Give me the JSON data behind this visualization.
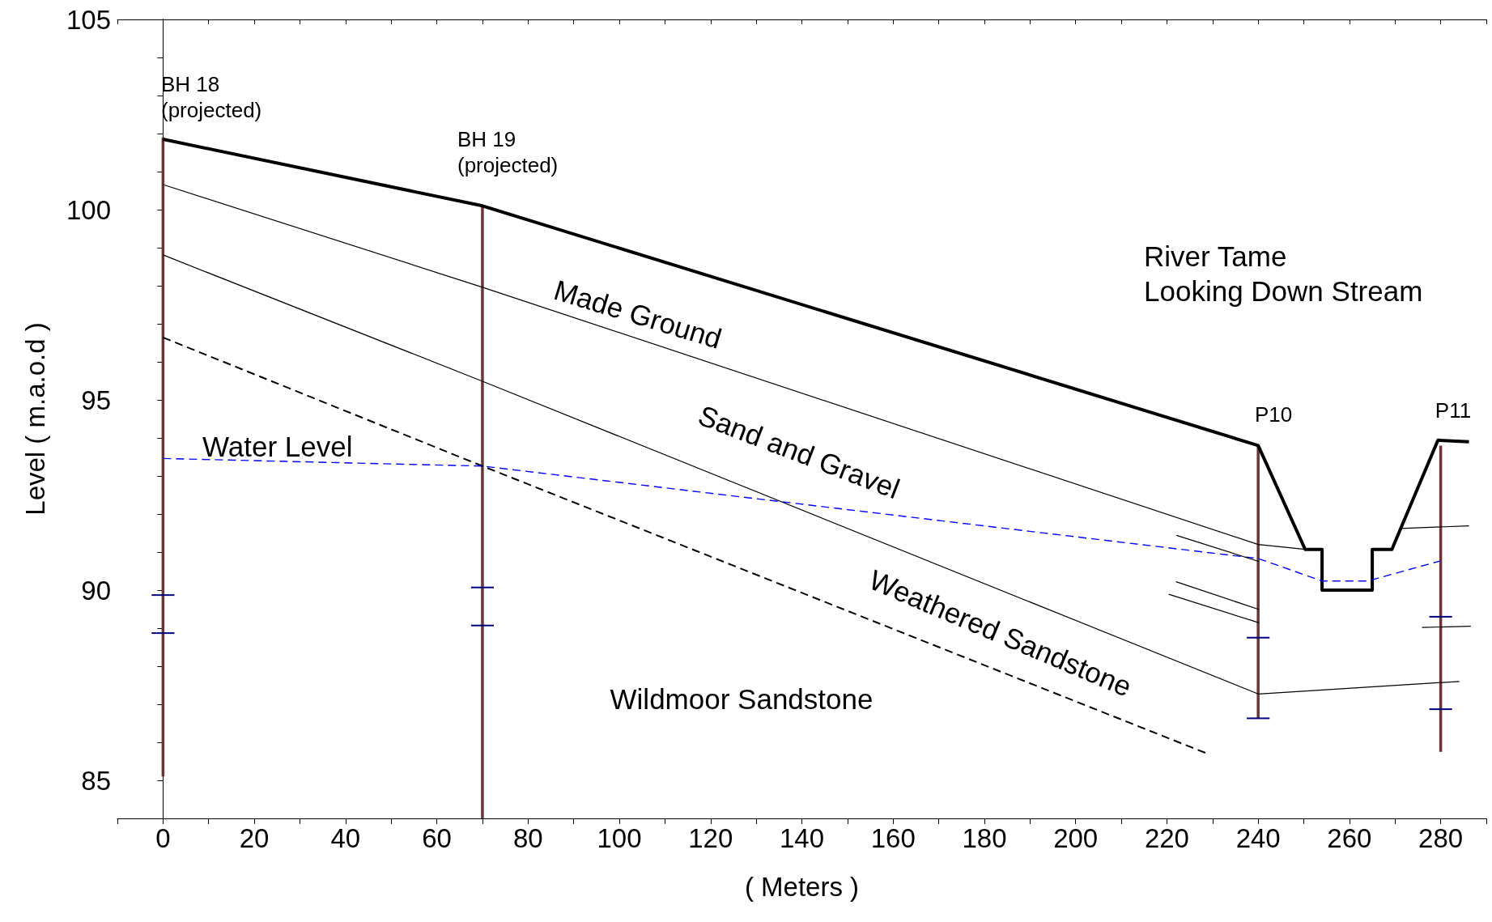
{
  "chart_data": {
    "type": "line",
    "xlabel": "( Meters )",
    "ylabel": "Level ( m.a.o.d )",
    "xlim": [
      -10,
      290
    ],
    "xticks": [
      {
        "value": -10,
        "label": null
      },
      0,
      {
        "value": 10,
        "label": null
      },
      20,
      {
        "value": 30,
        "label": null
      },
      40,
      {
        "value": 50,
        "label": null
      },
      60,
      {
        "value": 70,
        "label": null
      },
      80,
      {
        "value": 90,
        "label": null
      },
      100,
      {
        "value": 110,
        "label": null
      },
      120,
      {
        "value": 130,
        "label": null
      },
      140,
      {
        "value": 150,
        "label": null
      },
      160,
      {
        "value": 170,
        "label": null
      },
      180,
      {
        "value": 190,
        "label": null
      },
      200,
      {
        "value": 210,
        "label": null
      },
      220,
      {
        "value": 230,
        "label": null
      },
      240,
      {
        "value": 250,
        "label": null
      },
      260,
      {
        "value": 270,
        "label": null
      },
      280,
      {
        "value": 290,
        "label": null
      }
    ],
    "ylim": [
      84,
      105
    ],
    "yticks": [
      {
        "value": 84,
        "label": null
      },
      85,
      {
        "value": 86,
        "label": null
      },
      {
        "value": 87,
        "label": null
      },
      {
        "value": 88,
        "label": null
      },
      {
        "value": 89,
        "label": null
      },
      90,
      {
        "value": 91,
        "label": null
      },
      {
        "value": 92,
        "label": null
      },
      {
        "value": 93,
        "label": null
      },
      {
        "value": 94,
        "label": null
      },
      95,
      {
        "value": 96,
        "label": null
      },
      {
        "value": 97,
        "label": null
      },
      {
        "value": 98,
        "label": null
      },
      {
        "value": 99,
        "label": null
      },
      100,
      {
        "value": 101,
        "label": null
      },
      {
        "value": 102,
        "label": null
      },
      {
        "value": 103,
        "label": null
      },
      {
        "value": 104,
        "label": null
      },
      105
    ],
    "marker": "none",
    "series": [
      {
        "color": "#000000",
        "line_style": "solid",
        "x": [
          0,
          70,
          240,
          250.3,
          254,
          254,
          265,
          265,
          269.3,
          279.4,
          286.2
        ],
        "values": [
          101.85,
          100.1,
          93.8,
          91.07,
          91.07,
          90.0,
          90.0,
          91.07,
          91.07,
          93.94,
          93.9
        ]
      },
      {
        "color": "#000000",
        "line_style": "solid",
        "x": [
          0,
          70,
          240,
          250.3
        ],
        "values": [
          100.66,
          97.96,
          91.2,
          91.07
        ]
      },
      {
        "color": "#000000",
        "line_style": "solid",
        "x": [
          0,
          70,
          240,
          284.1
        ],
        "values": [
          98.81,
          95.49,
          87.27,
          87.6
        ]
      },
      {
        "color": "#000000",
        "line_style": "dashed",
        "x": [
          0,
          70,
          228.9
        ],
        "values": [
          96.64,
          93.26,
          85.7
        ]
      },
      {
        "color": "#0000ff",
        "line_style": "dashed",
        "x": [
          0,
          70,
          240,
          254,
          264,
          280
        ],
        "values": [
          93.46,
          93.26,
          90.83,
          90.24,
          90.24,
          90.77
        ]
      },
      {
        "color": "#000000",
        "line_style": "solid",
        "x": [
          222.1,
          240.2
        ],
        "values": [
          91.44,
          90.75
        ]
      },
      {
        "color": "#000000",
        "line_style": "solid",
        "x": [
          222,
          240.2
        ],
        "values": [
          90.22,
          89.49
        ]
      },
      {
        "color": "#000000",
        "line_style": "solid",
        "x": [
          220.4,
          240.2
        ],
        "values": [
          89.89,
          89.14
        ]
      },
      {
        "color": "#000000",
        "line_style": "solid",
        "x": [
          271.1,
          286.2
        ],
        "values": [
          91.62,
          91.69
        ]
      },
      {
        "color": "#000000",
        "line_style": "solid",
        "x": [
          275.9,
          286.6
        ],
        "values": [
          89.02,
          89.05
        ]
      },
      {
        "color": "#6b3535",
        "line_style": "solid",
        "x": [
          0,
          0
        ],
        "values": [
          101.9,
          85.1
        ]
      },
      {
        "color": "#6b3535",
        "line_style": "solid",
        "x": [
          70,
          70
        ],
        "values": [
          100.1,
          84
        ]
      },
      {
        "color": "#6b3535",
        "line_style": "solid",
        "x": [
          240,
          240
        ],
        "values": [
          93.8,
          86.62
        ]
      },
      {
        "color": "#6b3535",
        "line_style": "solid",
        "x": [
          280,
          280
        ],
        "values": [
          93.8,
          85.75
        ]
      },
      {
        "color": "#000080",
        "line_style": "solid",
        "x": [
          -2.5,
          2.5
        ],
        "values": [
          89.87,
          89.87
        ]
      },
      {
        "color": "#000080",
        "line_style": "solid",
        "x": [
          -2.5,
          2.5
        ],
        "values": [
          88.87,
          88.87
        ]
      },
      {
        "color": "#000080",
        "line_style": "solid",
        "x": [
          67.5,
          72.5
        ],
        "values": [
          90.07,
          90.07
        ]
      },
      {
        "color": "#000080",
        "line_style": "solid",
        "x": [
          67.5,
          72.5
        ],
        "values": [
          89.07,
          89.07
        ]
      },
      {
        "color": "#000080",
        "line_style": "solid",
        "x": [
          237.5,
          242.5
        ],
        "values": [
          88.75,
          88.75
        ]
      },
      {
        "color": "#000080",
        "line_style": "solid",
        "x": [
          237.5,
          242.5
        ],
        "values": [
          86.63,
          86.63
        ]
      },
      {
        "color": "#000080",
        "line_style": "solid",
        "x": [
          277.5,
          282.5
        ],
        "values": [
          89.3,
          89.3
        ]
      },
      {
        "color": "#000080",
        "line_style": "solid",
        "x": [
          277.5,
          282.5
        ],
        "values": [
          86.87,
          86.87
        ]
      }
    ],
    "annotations": [
      "BH 18\n(projected)",
      "BH 19\n(projected)",
      "P10",
      "P11",
      "River Tame\nLooking Down Stream",
      "Made Ground",
      "Sand and Gravel",
      "Weathered Sandstone",
      "Water Level",
      "Wildmoor Sandstone"
    ]
  }
}
